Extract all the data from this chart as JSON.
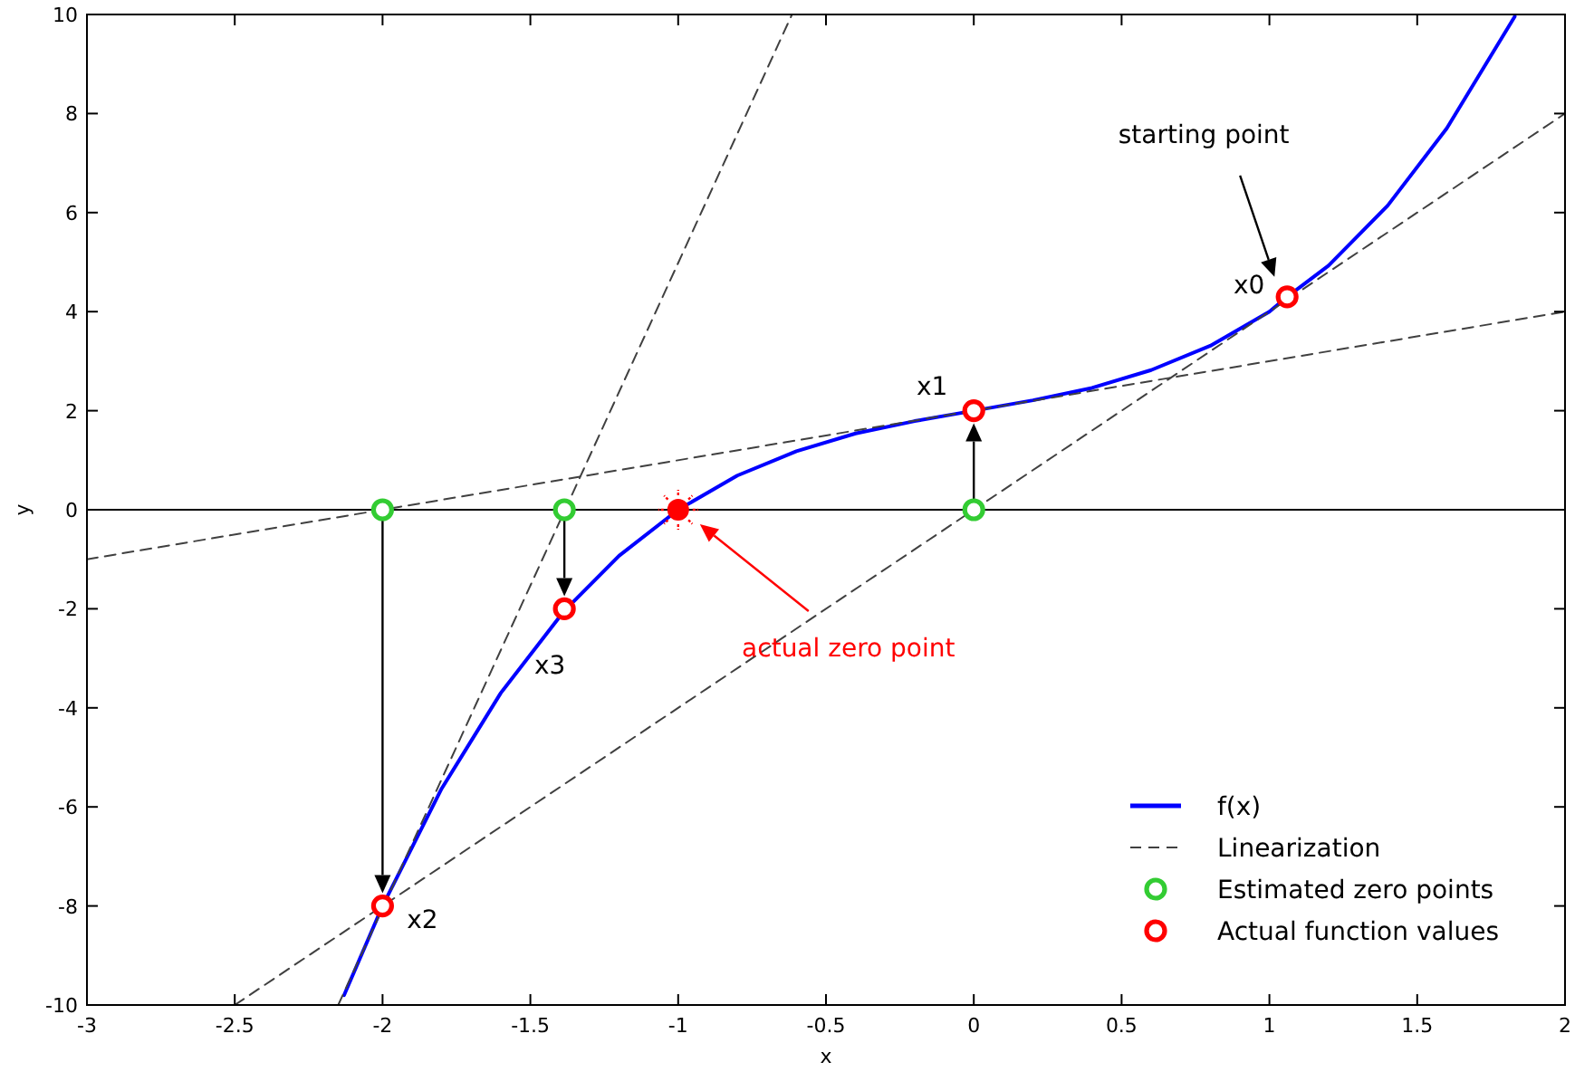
{
  "chart_data": {
    "type": "line",
    "xlabel": "x",
    "ylabel": "y",
    "xlim": [
      -3,
      2
    ],
    "xticks": [
      -3,
      -2.5,
      -2,
      -1.5,
      -1,
      -0.5,
      0,
      0.5,
      1,
      1.5,
      2
    ],
    "ylim": [
      -10,
      10
    ],
    "yticks": [
      -10,
      -8,
      -6,
      -4,
      -2,
      0,
      2,
      4,
      6,
      8,
      10
    ],
    "grid": false,
    "legend": "bottom right",
    "ref_lines": [
      {
        "axis": "y",
        "value": 0,
        "color": "#000000",
        "line_style": "solid"
      }
    ],
    "series": [
      {
        "name": "f(x)",
        "color": "#0000ff",
        "line_style": "solid",
        "marker": "none",
        "x": [
          -2.13,
          -2,
          -1.8,
          -1.6,
          -1.385,
          -1.2,
          -1,
          -0.8,
          -0.6,
          -0.4,
          -0.2,
          0,
          0.2,
          0.4,
          0.6,
          0.8,
          1,
          1.06,
          1.2,
          1.4,
          1.6,
          1.83
        ],
        "values": [
          -9.8,
          -8,
          -5.63,
          -3.7,
          -2.04,
          -0.93,
          0,
          0.69,
          1.18,
          1.54,
          1.79,
          2,
          2.21,
          2.46,
          2.82,
          3.31,
          4,
          4.3,
          4.93,
          6.14,
          7.7,
          9.96
        ]
      },
      {
        "name": "Linearization",
        "color": "#404040",
        "line_style": "dashed",
        "marker": "none",
        "x": [
          -2.5,
          2
        ],
        "values": [
          -10,
          8
        ]
      },
      {
        "type": "line",
        "color": "#404040",
        "line_style": "dashed",
        "marker": "none",
        "x": [
          -3,
          2
        ],
        "values": [
          -1,
          4
        ]
      },
      {
        "type": "line",
        "color": "#404040",
        "line_style": "dashed",
        "marker": "none",
        "x": [
          -2.15,
          -0.615
        ],
        "values": [
          -10,
          10
        ]
      },
      {
        "name": "Estimated zero points",
        "type": "scatter",
        "color": "#33cc33",
        "marker": "circle",
        "x": [
          -2,
          -1.385,
          0
        ],
        "values": [
          0,
          0,
          0
        ]
      },
      {
        "name": "Actual function values",
        "type": "scatter",
        "color": "#ff0000",
        "marker": "circle",
        "x": [
          1.06,
          0,
          -2,
          -1.385
        ],
        "values": [
          4.3,
          2,
          -8,
          -2
        ]
      },
      {
        "type": "scatter",
        "color": "#ff0000",
        "x": [
          -1
        ],
        "values": [
          0
        ]
      }
    ],
    "annotations": [
      "starting point",
      {
        "text": "x0",
        "x": 1.06,
        "y": 4.3
      },
      {
        "text": "x1",
        "x": 0,
        "y": 2
      },
      {
        "text": "x2",
        "x": -2,
        "y": -8
      },
      {
        "text": "x3",
        "x": -1.385,
        "y": -2
      },
      "actual zero point"
    ]
  }
}
